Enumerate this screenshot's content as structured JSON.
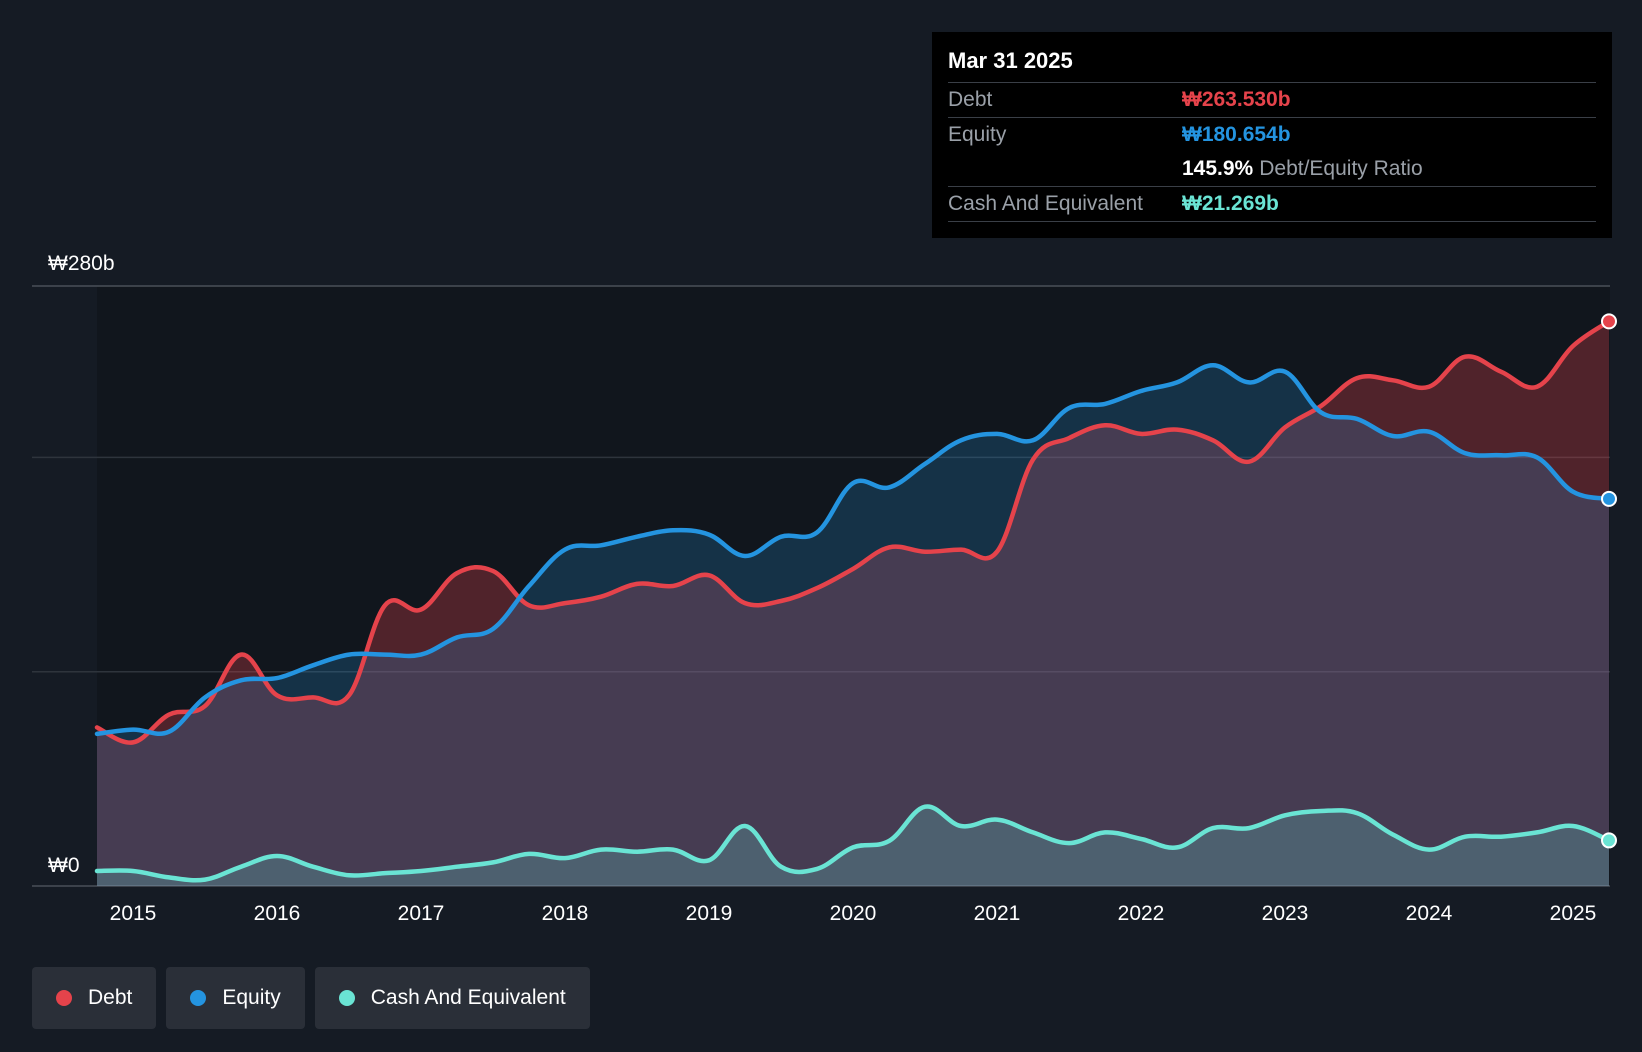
{
  "colors": {
    "debt": "#e5434b",
    "equity": "#2494e0",
    "cash": "#6ae4d4",
    "background": "#151b24"
  },
  "tooltip": {
    "date": "Mar 31 2025",
    "debt_label": "Debt",
    "debt_value": "₩263.530b",
    "equity_label": "Equity",
    "equity_value": "₩180.654b",
    "ratio_value": "145.9%",
    "ratio_label": "Debt/Equity Ratio",
    "cash_label": "Cash And Equivalent",
    "cash_value": "₩21.269b"
  },
  "legend": [
    {
      "label": "Debt",
      "color": "#e5434b"
    },
    {
      "label": "Equity",
      "color": "#2494e0"
    },
    {
      "label": "Cash And Equivalent",
      "color": "#6ae4d4"
    }
  ],
  "chart_data": {
    "type": "area",
    "title": "",
    "xlabel": "",
    "ylabel": "",
    "ylim": [
      0,
      280
    ],
    "xlim": [
      2014.5,
      2025.25
    ],
    "y_tick_labels": [
      {
        "value": 280,
        "label": "₩280b"
      },
      {
        "value": 0,
        "label": "₩0"
      }
    ],
    "gridlines": [
      280,
      200,
      100,
      0
    ],
    "x_ticks": [
      2015,
      2016,
      2017,
      2018,
      2019,
      2020,
      2021,
      2022,
      2023,
      2024,
      2025
    ],
    "x_tick_labels": [
      "2015",
      "2016",
      "2017",
      "2018",
      "2019",
      "2020",
      "2021",
      "2022",
      "2023",
      "2024",
      "2025"
    ],
    "x": [
      2014.75,
      2015.0,
      2015.25,
      2015.5,
      2015.75,
      2016.0,
      2016.25,
      2016.5,
      2016.75,
      2017.0,
      2017.25,
      2017.5,
      2017.75,
      2018.0,
      2018.25,
      2018.5,
      2018.75,
      2019.0,
      2019.25,
      2019.5,
      2019.75,
      2020.0,
      2020.25,
      2020.5,
      2020.75,
      2021.0,
      2021.25,
      2021.5,
      2021.75,
      2022.0,
      2022.25,
      2022.5,
      2022.75,
      2023.0,
      2023.25,
      2023.5,
      2023.75,
      2024.0,
      2024.25,
      2024.5,
      2024.75,
      2025.0,
      2025.25
    ],
    "series": [
      {
        "name": "Debt",
        "color": "#e5434b",
        "values": [
          74,
          67,
          80,
          84,
          108,
          89,
          88,
          89,
          131,
          129,
          146,
          147,
          131,
          132,
          135,
          141,
          140,
          145,
          132,
          133,
          139,
          148,
          158,
          156,
          157,
          156,
          199,
          209,
          215,
          211,
          213,
          208,
          198,
          214,
          224,
          237,
          236,
          233,
          247,
          240,
          233,
          252,
          263.5
        ]
      },
      {
        "name": "Equity",
        "color": "#2494e0",
        "values": [
          71,
          73,
          72,
          88,
          96,
          97,
          103,
          108,
          108,
          108,
          116,
          120,
          140,
          157,
          159,
          163,
          166,
          164,
          154,
          163,
          165,
          188,
          186,
          197,
          208,
          211,
          208,
          223,
          225,
          231,
          235,
          243,
          235,
          240,
          221,
          218,
          210,
          212,
          202,
          201,
          200,
          184,
          180.654
        ]
      },
      {
        "name": "Cash And Equivalent",
        "color": "#6ae4d4",
        "values": [
          7,
          7,
          4,
          3,
          9,
          14,
          9,
          5,
          6,
          7,
          9,
          11,
          15,
          13,
          17,
          16,
          17,
          12,
          28,
          9,
          8,
          18,
          21,
          37,
          28,
          31,
          25,
          20,
          25,
          22,
          18,
          27,
          27,
          33,
          35,
          34,
          24,
          17,
          23,
          23,
          25,
          28,
          21.269
        ]
      }
    ]
  }
}
